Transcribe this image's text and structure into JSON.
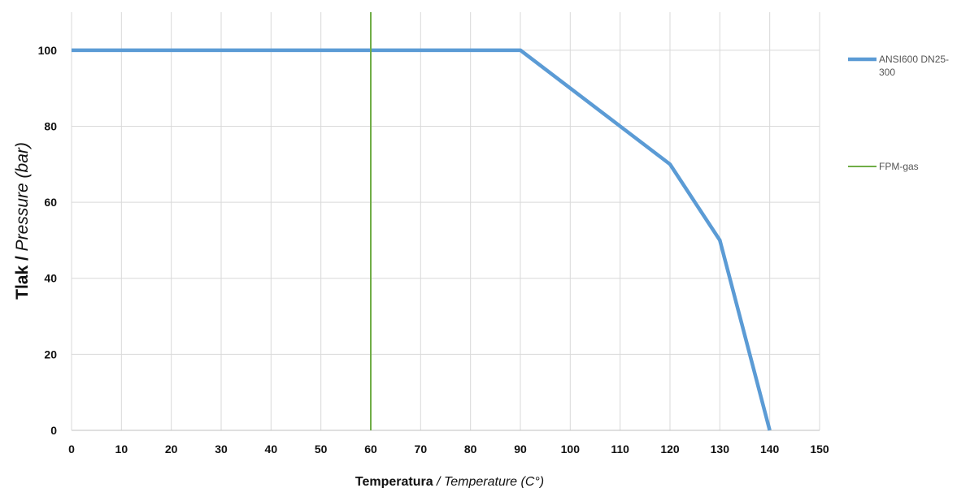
{
  "chart_data": {
    "type": "line",
    "xlabel_bold": "Temperatura",
    "xlabel_sep": " / ",
    "xlabel_italic": "Temperature  (C°)",
    "ylabel_bold": "Tlak ",
    "ylabel_sep": "/ ",
    "ylabel_italic": "Pressure (bar)",
    "xlim": [
      0,
      150
    ],
    "ylim": [
      0,
      110
    ],
    "x_ticks": [
      "0",
      "10",
      "20",
      "30",
      "40",
      "50",
      "60",
      "70",
      "80",
      "90",
      "100",
      "110",
      "120",
      "130",
      "140",
      "150"
    ],
    "y_ticks": [
      "0",
      "20",
      "40",
      "60",
      "80",
      "100"
    ],
    "grid": true,
    "legend_position": "right",
    "series": [
      {
        "name": "ANSI600 DN25-300",
        "legend_lines": [
          "ANSI600 DN25-",
          "300"
        ],
        "color": "#5B9BD5",
        "x": [
          0,
          90,
          120,
          130,
          140
        ],
        "y": [
          100,
          100,
          70,
          50,
          0
        ]
      },
      {
        "name": "FPM-gas",
        "legend_lines": [
          "FPM-gas"
        ],
        "color": "#70AD47",
        "x": [
          60,
          60
        ],
        "y": [
          0,
          110
        ]
      }
    ]
  }
}
